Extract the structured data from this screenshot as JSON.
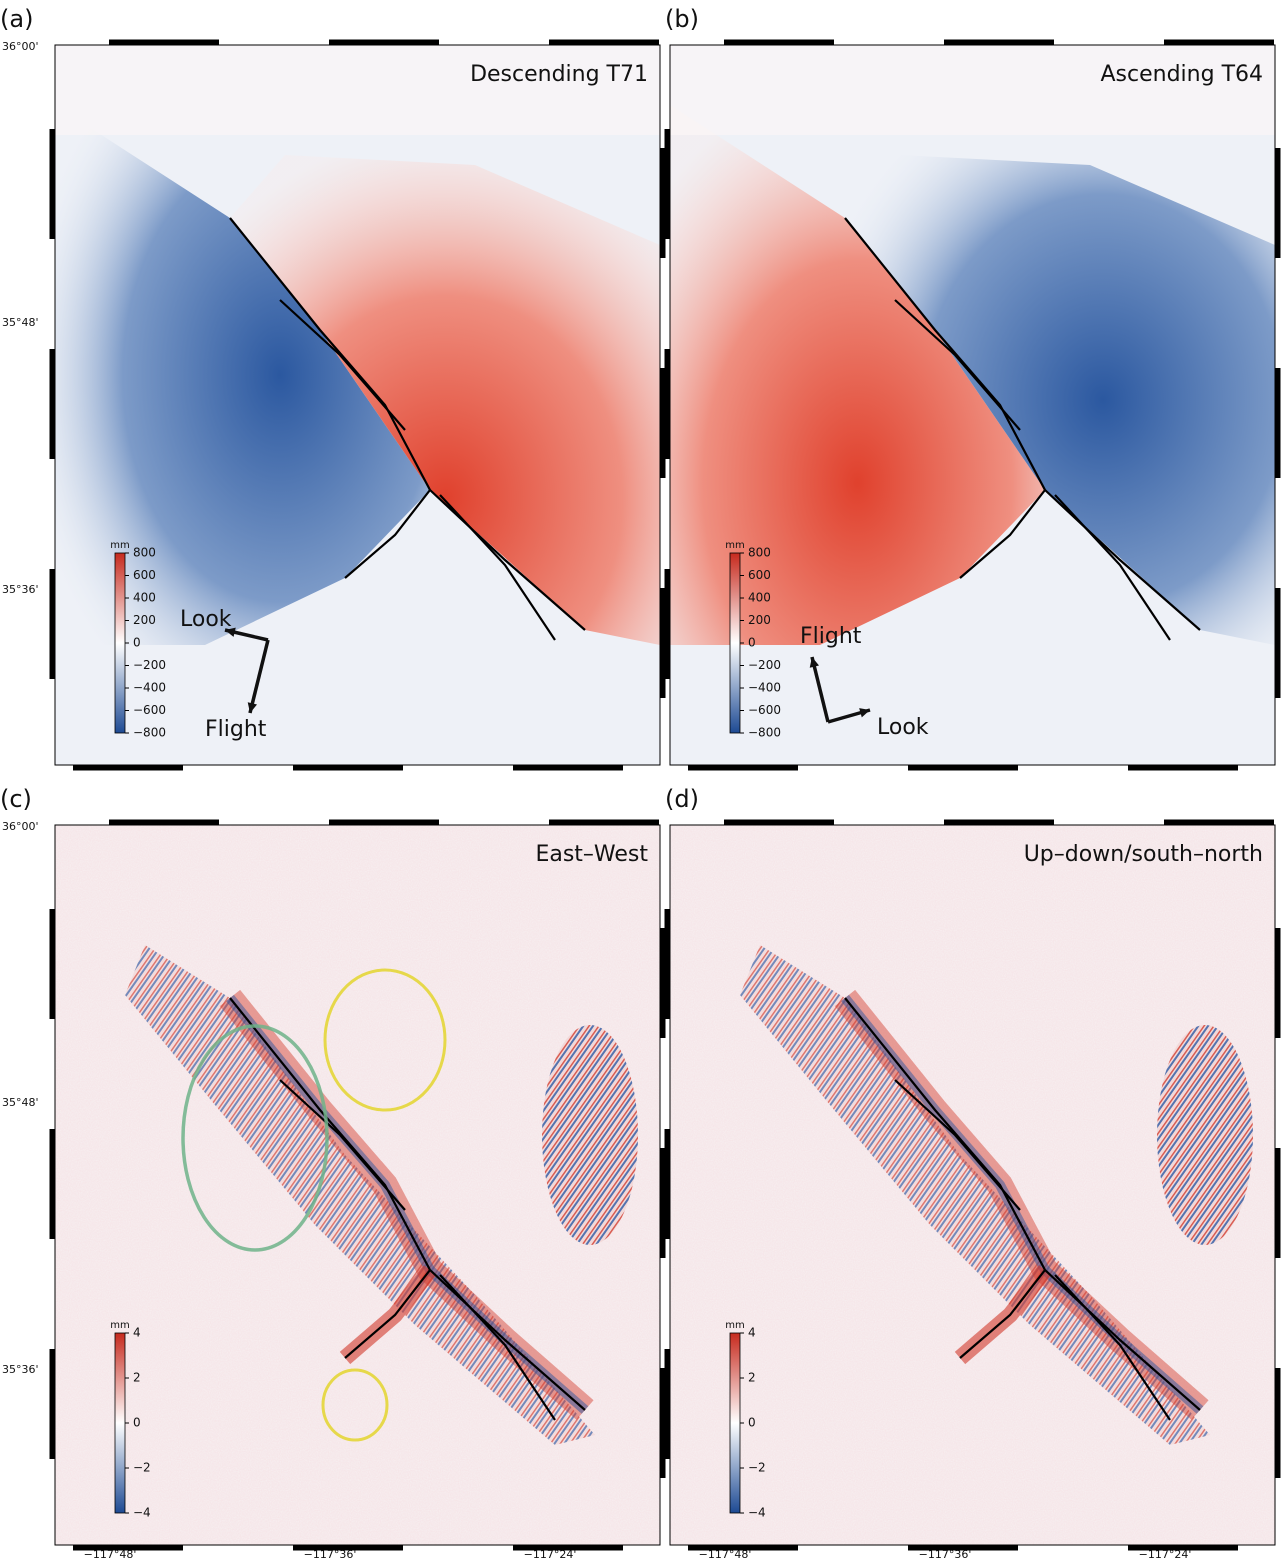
{
  "panels": [
    {
      "label": "(a)",
      "title": "Descending T71",
      "colorbar": {
        "unit": "mm",
        "ticks": [
          "800",
          "600",
          "400",
          "200",
          "0",
          "−200",
          "−400",
          "−600",
          "−800"
        ]
      },
      "arrows": {
        "look": "Look",
        "flight": "Flight"
      }
    },
    {
      "label": "(b)",
      "title": "Ascending T64",
      "colorbar": {
        "unit": "mm",
        "ticks": [
          "800",
          "600",
          "400",
          "200",
          "0",
          "−200",
          "−400",
          "−600",
          "−800"
        ]
      },
      "arrows": {
        "look": "Look",
        "flight": "Flight"
      }
    },
    {
      "label": "(c)",
      "title": "East–West",
      "colorbar": {
        "unit": "mm",
        "ticks": [
          "4",
          "2",
          "0",
          "−2",
          "−4"
        ]
      }
    },
    {
      "label": "(d)",
      "title": "Up–down/south–north",
      "colorbar": {
        "unit": "mm",
        "ticks": [
          "4",
          "2",
          "0",
          "−2",
          "−4"
        ]
      }
    }
  ],
  "lat_labels": [
    "36°00'",
    "35°48'",
    "35°36'"
  ],
  "lon_labels": [
    "−117°48'",
    "−117°36'",
    "−117°24'"
  ]
}
